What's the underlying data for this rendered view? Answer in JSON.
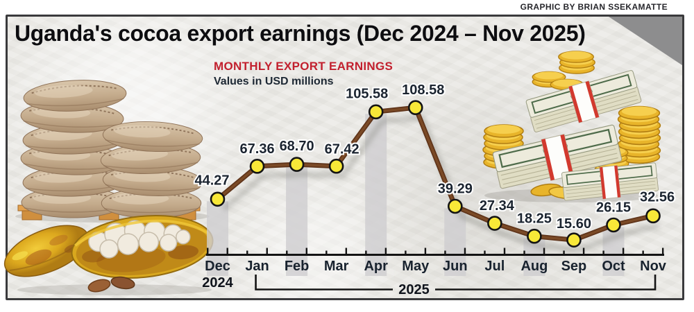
{
  "attribution": "GRAPHIC BY BRIAN SSEKAMATTE",
  "title": "Uganda's cocoa export earnings (Dec 2024 – Nov 2025)",
  "chart_data": {
    "type": "line",
    "title": "MONTHLY EXPORT EARNINGS",
    "subtitle": "Values in USD millions",
    "unit": "USD millions",
    "categories": [
      "Dec",
      "Jan",
      "Feb",
      "Mar",
      "Apr",
      "May",
      "Jun",
      "Jul",
      "Aug",
      "Sep",
      "Oct",
      "Nov"
    ],
    "values": [
      44.27,
      67.36,
      68.7,
      67.42,
      105.58,
      108.58,
      39.29,
      27.34,
      18.25,
      15.6,
      26.15,
      32.56
    ],
    "value_labels": [
      "44.27",
      "67.36",
      "68.70",
      "67.42",
      "105.58",
      "108.58",
      "39.29",
      "27.34",
      "18.25",
      "15.60",
      "26.15",
      "32.56"
    ],
    "x_axis": {
      "year_left_label": "2024",
      "year_left_months": [
        "Dec"
      ],
      "year_right_label": "2025",
      "year_right_months": [
        "Jan",
        "Feb",
        "Mar",
        "Apr",
        "May",
        "Jun",
        "Jul",
        "Aug",
        "Sep",
        "Oct",
        "Nov"
      ]
    },
    "highlighted_months": [
      "Dec",
      "Feb",
      "Apr",
      "Jun",
      "Aug",
      "Oct"
    ],
    "ylim": [
      0,
      120
    ],
    "grid": false,
    "legend": false,
    "colors": {
      "line": "#5f341a",
      "line_core": "#7b4a26",
      "marker_fill": "#f8e838",
      "marker_stroke": "#141414",
      "value_label": "#1b2430",
      "month_label": "#18222e",
      "axis": "#141414",
      "highlight_bar": "#cecdd0",
      "heading": "#c2202e"
    }
  },
  "illustrations": [
    {
      "name": "cocoa-sacks-on-pallet"
    },
    {
      "name": "cocoa-pods-with-beans"
    },
    {
      "name": "dollar-bundles-and-gold-coins"
    }
  ]
}
